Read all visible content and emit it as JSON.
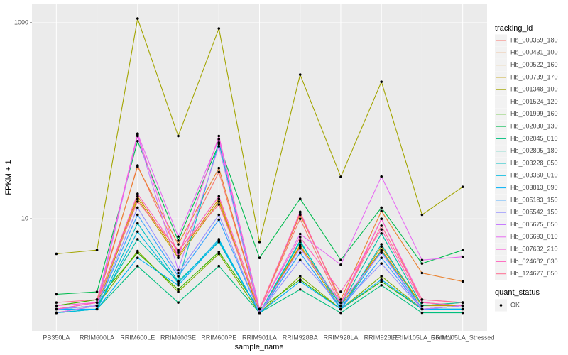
{
  "chart_data": {
    "type": "line",
    "x_label": "sample_name",
    "y_label": "FPKM + 1",
    "categories": [
      "PB350LA",
      "RRIM600LA",
      "RRIM600LE",
      "RRIM600SE",
      "RRIM600PE",
      "RRIM901LA",
      "RRIM928BA",
      "RRIM928LA",
      "RRIM928LE",
      "RRIM105LA_Control",
      "RRIM105LA_Stressed"
    ],
    "log_y": true,
    "grid": true,
    "ylim": [
      0.72,
      1570
    ],
    "yticks": [
      10,
      1000
    ],
    "legend_title": "tracking_id",
    "status_legend": {
      "title": "quant_status",
      "labels": [
        "OK"
      ]
    },
    "series": [
      {
        "name": "Hb_000359_180",
        "color": "#F8766D",
        "values": [
          1.2,
          1.4,
          35,
          4.5,
          30,
          1.2,
          10,
          1.3,
          10,
          1.4,
          1.3
        ]
      },
      {
        "name": "Hb_000431_100",
        "color": "#EA8331",
        "values": [
          1.3,
          1.5,
          34,
          5.5,
          33,
          1.2,
          11,
          1.5,
          12,
          2.8,
          2.3
        ]
      },
      {
        "name": "Hb_000522_160",
        "color": "#D89000",
        "values": [
          1.2,
          1.4,
          17,
          4.2,
          16,
          1.1,
          5.4,
          1.3,
          4.8,
          1.3,
          1.4
        ]
      },
      {
        "name": "Hb_000739_170",
        "color": "#C09B00",
        "values": [
          1.1,
          1.3,
          16,
          4,
          15,
          1.1,
          5.2,
          1.2,
          5.2,
          1.3,
          1.3
        ]
      },
      {
        "name": "Hb_001348_100",
        "color": "#A3A500",
        "values": [
          4.4,
          4.8,
          1105,
          70,
          875,
          5.8,
          296,
          26.8,
          250,
          11,
          21.2
        ]
      },
      {
        "name": "Hb_001524_120",
        "color": "#7CAE00",
        "values": [
          1.2,
          1.3,
          4.7,
          1.8,
          4.4,
          1.1,
          2.6,
          1.2,
          2.6,
          1.2,
          1.3
        ]
      },
      {
        "name": "Hb_001999_160",
        "color": "#39B600",
        "values": [
          1.3,
          1.5,
          4.5,
          1.9,
          4.6,
          1.2,
          2.4,
          1.2,
          2.3,
          1.2,
          1.2
        ]
      },
      {
        "name": "Hb_002030_130",
        "color": "#00BB4E",
        "values": [
          1.7,
          1.8,
          62,
          6,
          58,
          4,
          16,
          3.8,
          13,
          3.5,
          4.8
        ]
      },
      {
        "name": "Hb_002045_010",
        "color": "#00BF7D",
        "values": [
          1.1,
          1.2,
          3.3,
          1.4,
          3.3,
          1.1,
          1.9,
          1.1,
          2.1,
          1.1,
          1.1
        ]
      },
      {
        "name": "Hb_002805_180",
        "color": "#00C1A3",
        "values": [
          1.2,
          1.3,
          6.2,
          2.3,
          5.8,
          1.1,
          5.8,
          1.3,
          7.1,
          1.3,
          1.4
        ]
      },
      {
        "name": "Hb_003228_050",
        "color": "#00BFC4",
        "values": [
          1.1,
          1.2,
          9,
          2.3,
          60,
          1.1,
          6,
          1.2,
          5.5,
          1.2,
          1.2
        ]
      },
      {
        "name": "Hb_003360_010",
        "color": "#00BAE0",
        "values": [
          1.1,
          1.2,
          7.4,
          2.2,
          6.2,
          1.1,
          4.5,
          1.2,
          4.7,
          1.2,
          1.2
        ]
      },
      {
        "name": "Hb_003813_090",
        "color": "#00B0F6",
        "values": [
          1.2,
          1.2,
          4,
          2.1,
          6,
          1.1,
          2.3,
          1.2,
          2.4,
          1.2,
          1.2
        ]
      },
      {
        "name": "Hb_005183_150",
        "color": "#35A2FF",
        "values": [
          1.2,
          1.3,
          11,
          2.6,
          9.8,
          1.1,
          4.5,
          1.2,
          4,
          1.2,
          1.3
        ]
      },
      {
        "name": "Hb_005542_150",
        "color": "#9590FF",
        "values": [
          1.2,
          1.3,
          13,
          2.8,
          11,
          1.1,
          3.8,
          1.3,
          3.5,
          1.2,
          1.3
        ]
      },
      {
        "name": "Hb_005675_050",
        "color": "#C77CFF",
        "values": [
          1.1,
          1.3,
          70,
          3,
          55,
          1.1,
          5,
          1.4,
          4.5,
          1.2,
          1.3
        ]
      },
      {
        "name": "Hb_006693_010",
        "color": "#E76BF3",
        "values": [
          1.2,
          1.4,
          74,
          6.6,
          65,
          1.2,
          7,
          3.4,
          27,
          3.8,
          4.1
        ]
      },
      {
        "name": "Hb_007632_210",
        "color": "#FA62DB",
        "values": [
          1.3,
          1.4,
          72,
          4,
          70,
          1.2,
          11.8,
          1.4,
          10,
          1.5,
          1.4
        ]
      },
      {
        "name": "Hb_024682_030",
        "color": "#FF62BC",
        "values": [
          1.2,
          1.4,
          18,
          4.6,
          17,
          1.2,
          6.5,
          1.8,
          7.8,
          1.4,
          1.3
        ]
      },
      {
        "name": "Hb_124677_050",
        "color": "#FF6C91",
        "values": [
          1.4,
          1.5,
          15,
          4.8,
          14,
          1.2,
          11.5,
          1.4,
          8.5,
          1.5,
          1.4
        ]
      }
    ]
  }
}
